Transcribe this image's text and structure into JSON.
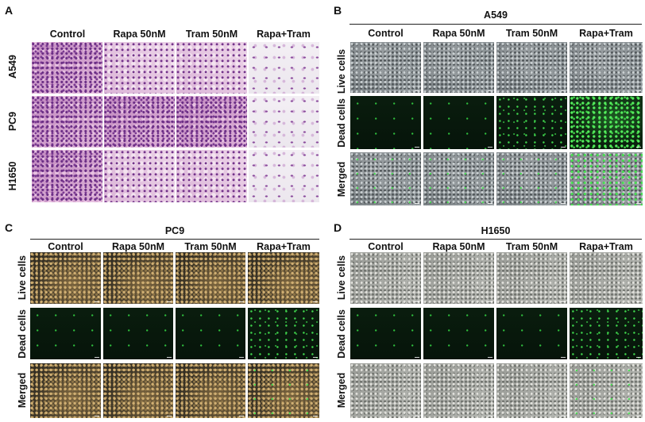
{
  "panels": {
    "A": {
      "label": "A",
      "columns": [
        "Control",
        "Rapa 50nM",
        "Tram 50nM",
        "Rapa+Tram"
      ],
      "rows": [
        "A549",
        "PC9",
        "H1650"
      ]
    },
    "B": {
      "label": "B",
      "cell_line": "A549",
      "columns": [
        "Control",
        "Rapa 50nM",
        "Tram 50nM",
        "Rapa+Tram"
      ],
      "rows": [
        "Live cells",
        "Dead cells",
        "Merged"
      ]
    },
    "C": {
      "label": "C",
      "cell_line": "PC9",
      "columns": [
        "Control",
        "Rapa 50nM",
        "Tram 50nM",
        "Rapa+Tram"
      ],
      "rows": [
        "Live cells",
        "Dead cells",
        "Merged"
      ]
    },
    "D": {
      "label": "D",
      "cell_line": "H1650",
      "columns": [
        "Control",
        "Rapa 50nM",
        "Tram 50nM",
        "Rapa+Tram"
      ],
      "rows": [
        "Live cells",
        "Dead cells",
        "Merged"
      ]
    }
  },
  "colors": {
    "he_stain": "#cf9ec9",
    "phase_grey": "#7f8689",
    "phase_gold": "#3b3324",
    "fluorescence_green": "#3fd34c"
  }
}
